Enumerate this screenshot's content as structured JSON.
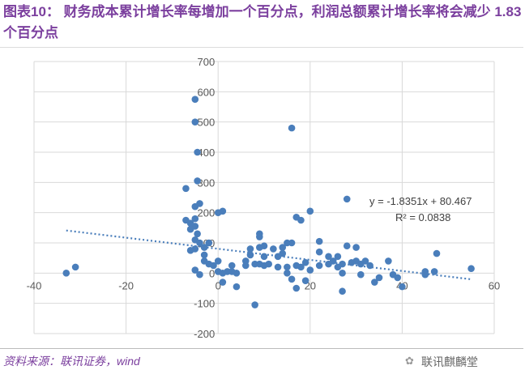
{
  "title": "图表10：  财务成本累计增长率每增加一个百分点，利润总额累计增长率将会减少 1.83 个百分点",
  "source": "资料来源：联讯证券，wind",
  "watermark": "联讯麒麟堂",
  "chart_data": {
    "type": "scatter",
    "title": "",
    "xlabel": "",
    "ylabel": "",
    "xlim": [
      -40,
      60
    ],
    "ylim": [
      -200,
      700
    ],
    "xticks": [
      -40,
      -20,
      0,
      20,
      40,
      60
    ],
    "yticks": [
      -200,
      -100,
      0,
      100,
      200,
      300,
      400,
      500,
      600,
      700
    ],
    "grid": true,
    "point_color": "#4a7ebb",
    "points": [
      [
        -33,
        0
      ],
      [
        -31,
        20
      ],
      [
        -7,
        175
      ],
      [
        -7,
        280
      ],
      [
        -5,
        575
      ],
      [
        -5,
        500
      ],
      [
        -4.5,
        400
      ],
      [
        -4.5,
        305
      ],
      [
        -4,
        230
      ],
      [
        -5,
        220
      ],
      [
        -5,
        180
      ],
      [
        -6,
        165
      ],
      [
        -5,
        155
      ],
      [
        -6,
        145
      ],
      [
        -4.5,
        130
      ],
      [
        -5,
        110
      ],
      [
        -5,
        80
      ],
      [
        -6,
        75
      ],
      [
        -4,
        100
      ],
      [
        -3,
        85
      ],
      [
        -2,
        100
      ],
      [
        -3,
        60
      ],
      [
        -3,
        40
      ],
      [
        -2,
        30
      ],
      [
        -1,
        25
      ],
      [
        0,
        40
      ],
      [
        -5,
        10
      ],
      [
        -4,
        -5
      ],
      [
        0,
        200
      ],
      [
        1,
        205
      ],
      [
        0,
        5
      ],
      [
        1,
        0
      ],
      [
        2,
        5
      ],
      [
        1,
        -30
      ],
      [
        3,
        25
      ],
      [
        3,
        5
      ],
      [
        4,
        -45
      ],
      [
        4,
        0
      ],
      [
        6,
        40
      ],
      [
        6,
        25
      ],
      [
        7,
        60
      ],
      [
        7,
        80
      ],
      [
        8,
        30
      ],
      [
        9,
        120
      ],
      [
        9,
        130
      ],
      [
        8,
        -105
      ],
      [
        10,
        90
      ],
      [
        9,
        85
      ],
      [
        10,
        55
      ],
      [
        9,
        30
      ],
      [
        10,
        25
      ],
      [
        11,
        30
      ],
      [
        12,
        80
      ],
      [
        13,
        55
      ],
      [
        13,
        20
      ],
      [
        14,
        65
      ],
      [
        14,
        85
      ],
      [
        15,
        100
      ],
      [
        15,
        20
      ],
      [
        15,
        0
      ],
      [
        16,
        -20
      ],
      [
        16,
        480
      ],
      [
        16,
        100
      ],
      [
        17,
        185
      ],
      [
        18,
        175
      ],
      [
        17,
        25
      ],
      [
        17,
        -50
      ],
      [
        18,
        20
      ],
      [
        19,
        35
      ],
      [
        19,
        -25
      ],
      [
        20,
        10
      ],
      [
        20,
        205
      ],
      [
        22,
        105
      ],
      [
        22,
        70
      ],
      [
        22,
        25
      ],
      [
        24,
        30
      ],
      [
        24,
        55
      ],
      [
        25,
        40
      ],
      [
        26,
        20
      ],
      [
        26,
        55
      ],
      [
        27,
        30
      ],
      [
        27,
        0
      ],
      [
        28,
        90
      ],
      [
        28,
        245
      ],
      [
        29,
        35
      ],
      [
        30,
        85
      ],
      [
        30,
        40
      ],
      [
        31,
        -5
      ],
      [
        31,
        30
      ],
      [
        32,
        40
      ],
      [
        33,
        25
      ],
      [
        34,
        -30
      ],
      [
        35,
        -15
      ],
      [
        37,
        40
      ],
      [
        38,
        -5
      ],
      [
        39,
        -15
      ],
      [
        40,
        -45
      ],
      [
        45,
        5
      ],
      [
        45,
        -5
      ],
      [
        47,
        5
      ],
      [
        47.5,
        65
      ],
      [
        55,
        15
      ],
      [
        27,
        -60
      ]
    ],
    "trendline": {
      "slope": -1.8351,
      "intercept": 80.467,
      "x_range": [
        -33,
        55
      ],
      "style": "dotted"
    },
    "annotations": [
      "y = -1.8351x + 80.467",
      "R² = 0.0838"
    ]
  }
}
